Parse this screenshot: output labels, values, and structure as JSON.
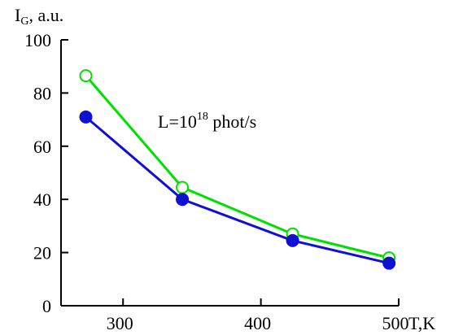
{
  "chart_data": {
    "type": "line",
    "title": "",
    "ylabel_main": "I",
    "ylabel_sub": "G",
    "ylabel_rest": ", a.u.",
    "xlabel": "T,K",
    "xlim": [
      255,
      500
    ],
    "ylim": [
      0,
      100
    ],
    "xticks": [
      300,
      400,
      500
    ],
    "yticks": [
      0,
      20,
      40,
      60,
      80,
      100
    ],
    "grid": false,
    "annotation": {
      "prefix": "L=10",
      "superscript": "18",
      "suffix": " phot/s"
    },
    "series": [
      {
        "color": "#00e000",
        "marker": "open-circle",
        "x": [
          273,
          343,
          423,
          493
        ],
        "y": [
          86.5,
          44.5,
          27,
          18
        ]
      },
      {
        "color": "#1010d0",
        "marker": "filled-circle",
        "x": [
          273,
          343,
          423,
          493
        ],
        "y": [
          71,
          40,
          24.5,
          16
        ]
      }
    ]
  }
}
